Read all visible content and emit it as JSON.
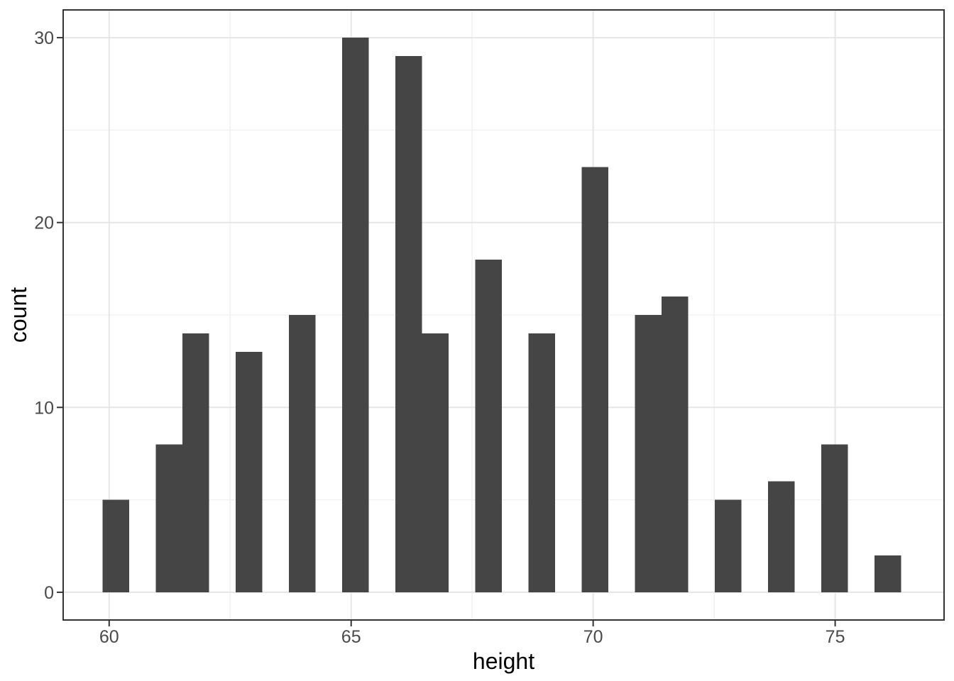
{
  "chart_data": {
    "type": "bar",
    "subtype": "histogram",
    "title": "",
    "xlabel": "height",
    "ylabel": "count",
    "x_ticks": [
      60,
      65,
      70,
      75
    ],
    "y_ticks": [
      0,
      10,
      20,
      30
    ],
    "x_minor_gridlines": [
      62.5,
      67.5,
      72.5
    ],
    "y_minor_gridlines": [
      5,
      15,
      25
    ],
    "x_range": [
      59.05,
      77.25
    ],
    "y_range": [
      -1.5,
      31.5
    ],
    "binwidth": 0.55,
    "bins": [
      {
        "center": 60.14,
        "count": 5
      },
      {
        "center": 61.24,
        "count": 8
      },
      {
        "center": 61.79,
        "count": 14
      },
      {
        "center": 62.89,
        "count": 13
      },
      {
        "center": 63.99,
        "count": 15
      },
      {
        "center": 65.09,
        "count": 30
      },
      {
        "center": 66.19,
        "count": 29
      },
      {
        "center": 66.74,
        "count": 14
      },
      {
        "center": 67.84,
        "count": 18
      },
      {
        "center": 68.94,
        "count": 14
      },
      {
        "center": 70.04,
        "count": 23
      },
      {
        "center": 71.14,
        "count": 15
      },
      {
        "center": 71.69,
        "count": 16
      },
      {
        "center": 72.79,
        "count": 5
      },
      {
        "center": 73.89,
        "count": 6
      },
      {
        "center": 74.99,
        "count": 8
      },
      {
        "center": 76.09,
        "count": 2
      }
    ],
    "grid": true,
    "legend_position": "none",
    "colors": {
      "bar_fill": "#454545",
      "panel_border": "#333333",
      "axis_tick": "#333333",
      "grid_major": "#e6e6e6",
      "grid_minor": "#efefef",
      "tick_label": "#4a4a4a",
      "axis_title": "#000000",
      "background": "#ffffff"
    }
  }
}
